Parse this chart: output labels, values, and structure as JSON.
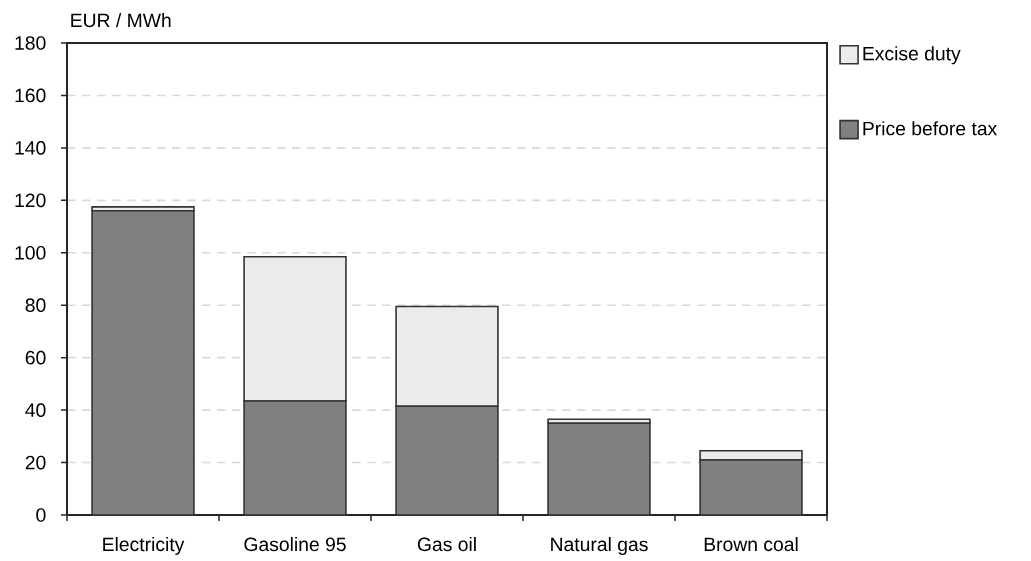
{
  "chart_data": {
    "type": "bar",
    "stacked": true,
    "ylabel": "EUR / MWh",
    "categories": [
      "Electricity",
      "Gasoline 95",
      "Gas oil",
      "Natural gas",
      "Brown coal"
    ],
    "series": [
      {
        "name": "Price before tax",
        "color": "#808080",
        "values": [
          116,
          43.5,
          41.5,
          35,
          21
        ]
      },
      {
        "name": "Excise duty",
        "color": "#ebebeb",
        "values": [
          1.5,
          55,
          38,
          1.5,
          3.5
        ]
      }
    ],
    "ylim": [
      0,
      180
    ],
    "yticks": [
      0,
      20,
      40,
      60,
      80,
      100,
      120,
      140,
      160,
      180
    ],
    "grid": "y",
    "legend": "right"
  }
}
